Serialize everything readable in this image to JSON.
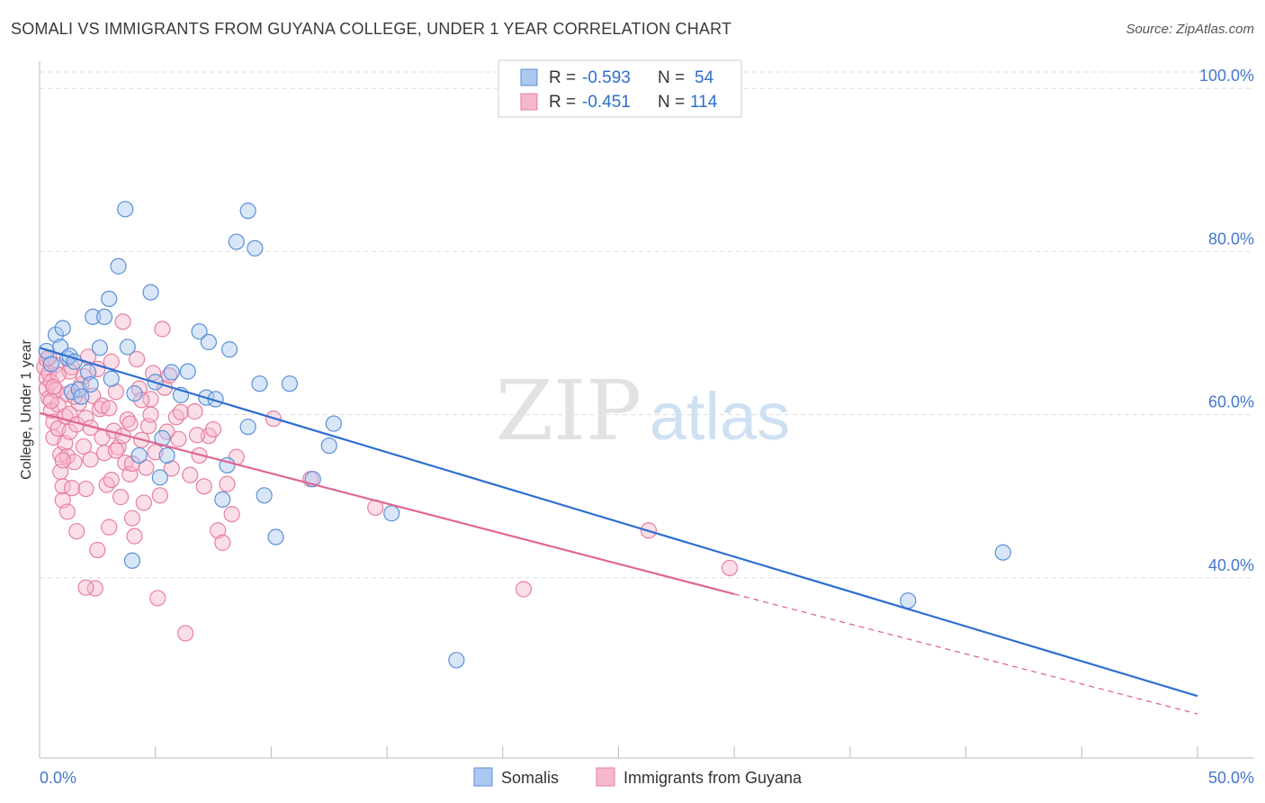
{
  "header": {
    "title": "SOMALI VS IMMIGRANTS FROM GUYANA COLLEGE, UNDER 1 YEAR CORRELATION CHART",
    "source": "Source: ZipAtlas.com"
  },
  "watermark": {
    "zip": "ZIP",
    "atlas": "atlas"
  },
  "legend_box": {
    "rows": [
      {
        "r_label": "R =",
        "r_value": "-0.593",
        "n_label": "N =",
        "n_value": "54"
      },
      {
        "r_label": "R =",
        "r_value": "-0.451",
        "n_label": "N =",
        "n_value": "114"
      }
    ]
  },
  "colors": {
    "somalis_fill": "#aac8f0",
    "somalis_stroke": "#5b8fd8",
    "somalis_line": "#2e6fd0",
    "guyana_fill": "#f6b8cb",
    "guyana_stroke": "#e77fa0",
    "guyana_line": "#e06692",
    "axis_text": "#4477cc",
    "grid": "#dddddd"
  },
  "chart_data": {
    "type": "scatter",
    "title": "SOMALI VS IMMIGRANTS FROM GUYANA COLLEGE, UNDER 1 YEAR CORRELATION CHART",
    "xlabel": "",
    "ylabel": "College, Under 1 year",
    "xlim": [
      0,
      50
    ],
    "ylim": [
      20,
      104
    ],
    "x_tick_labels": [
      "0.0%",
      "50.0%"
    ],
    "y_ticks": [
      40,
      60,
      80,
      100
    ],
    "y_tick_labels": [
      "40.0%",
      "60.0%",
      "80.0%",
      "100.0%"
    ],
    "grid": true,
    "legend_position": "bottom-center",
    "series": [
      {
        "name": "Somalis",
        "r": -0.593,
        "n": 54,
        "trend": {
          "x": [
            0,
            50
          ],
          "y": [
            68.2,
            25.5
          ]
        },
        "points": [
          [
            0.3,
            67.8
          ],
          [
            0.5,
            66.2
          ],
          [
            0.7,
            69.8
          ],
          [
            0.9,
            68.3
          ],
          [
            1.0,
            70.6
          ],
          [
            1.2,
            66.9
          ],
          [
            1.3,
            67.2
          ],
          [
            1.4,
            62.8
          ],
          [
            1.5,
            66.5
          ],
          [
            1.7,
            63.1
          ],
          [
            1.8,
            62.2
          ],
          [
            2.1,
            65.2
          ],
          [
            2.2,
            63.7
          ],
          [
            2.3,
            72.0
          ],
          [
            2.6,
            68.2
          ],
          [
            2.8,
            72.0
          ],
          [
            3.0,
            74.2
          ],
          [
            3.1,
            64.4
          ],
          [
            3.4,
            78.2
          ],
          [
            3.8,
            68.3
          ],
          [
            4.0,
            42.1
          ],
          [
            4.1,
            62.6
          ],
          [
            4.3,
            55.0
          ],
          [
            4.8,
            75.0
          ],
          [
            5.0,
            64.0
          ],
          [
            5.2,
            52.3
          ],
          [
            5.3,
            57.1
          ],
          [
            5.5,
            55.0
          ],
          [
            5.7,
            65.2
          ],
          [
            6.1,
            62.4
          ],
          [
            6.4,
            65.3
          ],
          [
            6.9,
            70.2
          ],
          [
            7.2,
            62.1
          ],
          [
            7.3,
            68.9
          ],
          [
            7.6,
            61.9
          ],
          [
            7.9,
            49.6
          ],
          [
            8.1,
            53.8
          ],
          [
            8.2,
            68.0
          ],
          [
            8.5,
            81.2
          ],
          [
            9.0,
            58.5
          ],
          [
            9.0,
            85.0
          ],
          [
            9.3,
            80.4
          ],
          [
            9.5,
            63.8
          ],
          [
            9.7,
            50.1
          ],
          [
            10.2,
            45.0
          ],
          [
            10.8,
            63.8
          ],
          [
            11.8,
            52.1
          ],
          [
            12.5,
            56.2
          ],
          [
            12.7,
            58.9
          ],
          [
            15.2,
            47.9
          ],
          [
            18.0,
            29.9
          ],
          [
            37.5,
            37.2
          ],
          [
            41.6,
            43.1
          ],
          [
            3.7,
            85.2
          ]
        ]
      },
      {
        "name": "Immigrants from Guyana",
        "r": -0.451,
        "n": 114,
        "trend": {
          "x": [
            0,
            30
          ],
          "y": [
            60.2,
            38.0
          ]
        },
        "trend_dashed": {
          "x": [
            30,
            50
          ],
          "y": [
            38.0,
            23.3
          ]
        },
        "points": [
          [
            0.2,
            65.8
          ],
          [
            0.3,
            64.5
          ],
          [
            0.3,
            63.2
          ],
          [
            0.4,
            65.1
          ],
          [
            0.4,
            62.0
          ],
          [
            0.5,
            64.0
          ],
          [
            0.5,
            60.5
          ],
          [
            0.6,
            59.1
          ],
          [
            0.6,
            57.2
          ],
          [
            0.7,
            66.1
          ],
          [
            0.7,
            63.0
          ],
          [
            0.8,
            61.2
          ],
          [
            0.8,
            58.3
          ],
          [
            0.9,
            55.1
          ],
          [
            0.9,
            53.0
          ],
          [
            1.0,
            51.2
          ],
          [
            1.0,
            49.5
          ],
          [
            1.1,
            59.8
          ],
          [
            1.1,
            56.5
          ],
          [
            1.2,
            54.9
          ],
          [
            1.2,
            62.5
          ],
          [
            1.3,
            60.1
          ],
          [
            1.3,
            57.9
          ],
          [
            1.4,
            51.0
          ],
          [
            1.4,
            65.8
          ],
          [
            1.5,
            54.2
          ],
          [
            1.6,
            45.7
          ],
          [
            1.6,
            58.8
          ],
          [
            1.7,
            61.4
          ],
          [
            1.8,
            63.7
          ],
          [
            1.9,
            56.1
          ],
          [
            2.0,
            50.9
          ],
          [
            2.0,
            59.6
          ],
          [
            2.1,
            67.1
          ],
          [
            2.2,
            54.5
          ],
          [
            2.3,
            62.3
          ],
          [
            2.4,
            38.7
          ],
          [
            2.5,
            43.4
          ],
          [
            2.6,
            60.7
          ],
          [
            2.7,
            57.2
          ],
          [
            2.8,
            55.3
          ],
          [
            2.9,
            51.4
          ],
          [
            3.0,
            46.2
          ],
          [
            3.1,
            66.5
          ],
          [
            3.2,
            58.0
          ],
          [
            3.3,
            62.8
          ],
          [
            3.4,
            56.0
          ],
          [
            3.5,
            49.9
          ],
          [
            3.6,
            71.4
          ],
          [
            3.7,
            54.1
          ],
          [
            3.8,
            59.4
          ],
          [
            3.9,
            52.7
          ],
          [
            4.0,
            47.3
          ],
          [
            4.1,
            45.1
          ],
          [
            4.2,
            66.8
          ],
          [
            4.3,
            63.2
          ],
          [
            4.4,
            56.9
          ],
          [
            4.5,
            49.2
          ],
          [
            4.6,
            53.5
          ],
          [
            4.7,
            58.6
          ],
          [
            4.8,
            61.9
          ],
          [
            4.9,
            65.1
          ],
          [
            5.0,
            55.4
          ],
          [
            5.1,
            37.5
          ],
          [
            5.2,
            50.1
          ],
          [
            5.3,
            70.5
          ],
          [
            5.5,
            57.9
          ],
          [
            5.7,
            53.4
          ],
          [
            5.9,
            59.7
          ],
          [
            6.1,
            60.3
          ],
          [
            6.3,
            33.2
          ],
          [
            6.5,
            52.6
          ],
          [
            6.7,
            60.4
          ],
          [
            6.9,
            55.0
          ],
          [
            7.1,
            51.2
          ],
          [
            7.3,
            57.4
          ],
          [
            7.5,
            58.2
          ],
          [
            7.7,
            45.8
          ],
          [
            7.9,
            44.3
          ],
          [
            8.1,
            51.5
          ],
          [
            8.3,
            47.8
          ],
          [
            8.5,
            54.8
          ],
          [
            10.1,
            59.5
          ],
          [
            11.7,
            52.1
          ],
          [
            14.5,
            48.6
          ],
          [
            20.9,
            38.6
          ],
          [
            26.3,
            45.8
          ],
          [
            29.8,
            41.2
          ],
          [
            0.3,
            66.8
          ],
          [
            0.5,
            61.7
          ],
          [
            1.0,
            54.4
          ],
          [
            1.3,
            65.3
          ],
          [
            1.9,
            64.7
          ],
          [
            2.2,
            58.4
          ],
          [
            2.7,
            61.1
          ],
          [
            3.0,
            60.8
          ],
          [
            3.3,
            55.6
          ],
          [
            3.6,
            57.4
          ],
          [
            4.0,
            54.0
          ],
          [
            4.4,
            61.8
          ],
          [
            4.8,
            60.0
          ],
          [
            5.4,
            63.3
          ],
          [
            6.0,
            57.0
          ],
          [
            0.8,
            64.9
          ],
          [
            1.5,
            62.2
          ],
          [
            2.5,
            65.6
          ],
          [
            3.9,
            58.9
          ],
          [
            5.6,
            64.8
          ],
          [
            0.4,
            67.0
          ],
          [
            2.0,
            38.8
          ],
          [
            1.2,
            48.1
          ],
          [
            3.1,
            52.0
          ],
          [
            6.8,
            57.5
          ],
          [
            0.6,
            63.4
          ]
        ]
      }
    ]
  },
  "bottom_legend": {
    "items": [
      "Somalis",
      "Immigrants from Guyana"
    ]
  }
}
